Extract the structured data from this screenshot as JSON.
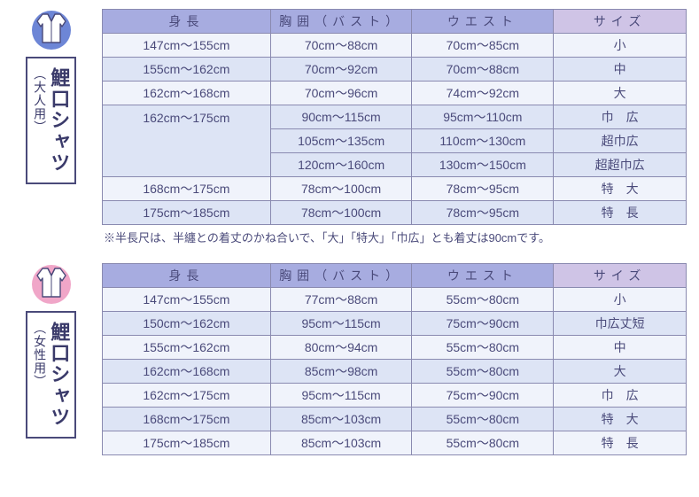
{
  "colors": {
    "header_blue": "#a7ace0",
    "header_purple": "#cfc4e6",
    "row_light": "#f0f3fb",
    "row_dark": "#dde4f5",
    "icon_blue": "#6d86d6",
    "icon_pink": "#f0a6c8",
    "border": "#8a8ab0",
    "text": "#4a4a7a"
  },
  "headers": {
    "height": "身長",
    "bust": "胸囲（バスト）",
    "waist": "ウエスト",
    "size": "サイズ"
  },
  "adult": {
    "title_main": "鯉口シャツ",
    "title_sub": "（大人用）",
    "rows": [
      {
        "height": "147cm～155cm",
        "bust": "70cm～88cm",
        "waist": "70cm～85cm",
        "size": "小",
        "shade": "light",
        "rowspan_h": 1
      },
      {
        "height": "155cm～162cm",
        "bust": "70cm～92cm",
        "waist": "70cm～88cm",
        "size": "中",
        "shade": "dark",
        "rowspan_h": 1
      },
      {
        "height": "162cm～168cm",
        "bust": "70cm～96cm",
        "waist": "74cm～92cm",
        "size": "大",
        "shade": "light",
        "rowspan_h": 1
      },
      {
        "height": "162cm～175cm",
        "bust": "90cm～115cm",
        "waist": "95cm～110cm",
        "size": "巾　広",
        "shade": "dark",
        "rowspan_h": 3
      },
      {
        "height": "",
        "bust": "105cm～135cm",
        "waist": "110cm～130cm",
        "size": "超巾広",
        "shade": "dark",
        "rowspan_h": 0
      },
      {
        "height": "",
        "bust": "120cm～160cm",
        "waist": "130cm～150cm",
        "size": "超超巾広",
        "shade": "dark",
        "rowspan_h": 0
      },
      {
        "height": "168cm～175cm",
        "bust": "78cm～100cm",
        "waist": "78cm～95cm",
        "size": "特　大",
        "shade": "light",
        "rowspan_h": 1
      },
      {
        "height": "175cm～185cm",
        "bust": "78cm～100cm",
        "waist": "78cm～95cm",
        "size": "特　長",
        "shade": "dark",
        "rowspan_h": 1
      }
    ],
    "note": "※半長尺は、半纏との着丈のかね合いで、「大」「特大」「巾広」とも着丈は90cmです。"
  },
  "female": {
    "title_main": "鯉口シャツ",
    "title_sub": "（女性用）",
    "rows": [
      {
        "height": "147cm～155cm",
        "bust": "77cm～88cm",
        "waist": "55cm～80cm",
        "size": "小",
        "shade": "light"
      },
      {
        "height": "150cm～162cm",
        "bust": "95cm～115cm",
        "waist": "75cm～90cm",
        "size": "巾広丈短",
        "shade": "dark"
      },
      {
        "height": "155cm～162cm",
        "bust": "80cm～94cm",
        "waist": "55cm～80cm",
        "size": "中",
        "shade": "light"
      },
      {
        "height": "162cm～168cm",
        "bust": "85cm～98cm",
        "waist": "55cm～80cm",
        "size": "大",
        "shade": "dark"
      },
      {
        "height": "162cm～175cm",
        "bust": "95cm～115cm",
        "waist": "75cm～90cm",
        "size": "巾　広",
        "shade": "light"
      },
      {
        "height": "168cm～175cm",
        "bust": "85cm～103cm",
        "waist": "55cm～80cm",
        "size": "特　大",
        "shade": "dark"
      },
      {
        "height": "175cm～185cm",
        "bust": "85cm～103cm",
        "waist": "55cm～80cm",
        "size": "特　長",
        "shade": "light"
      }
    ]
  }
}
